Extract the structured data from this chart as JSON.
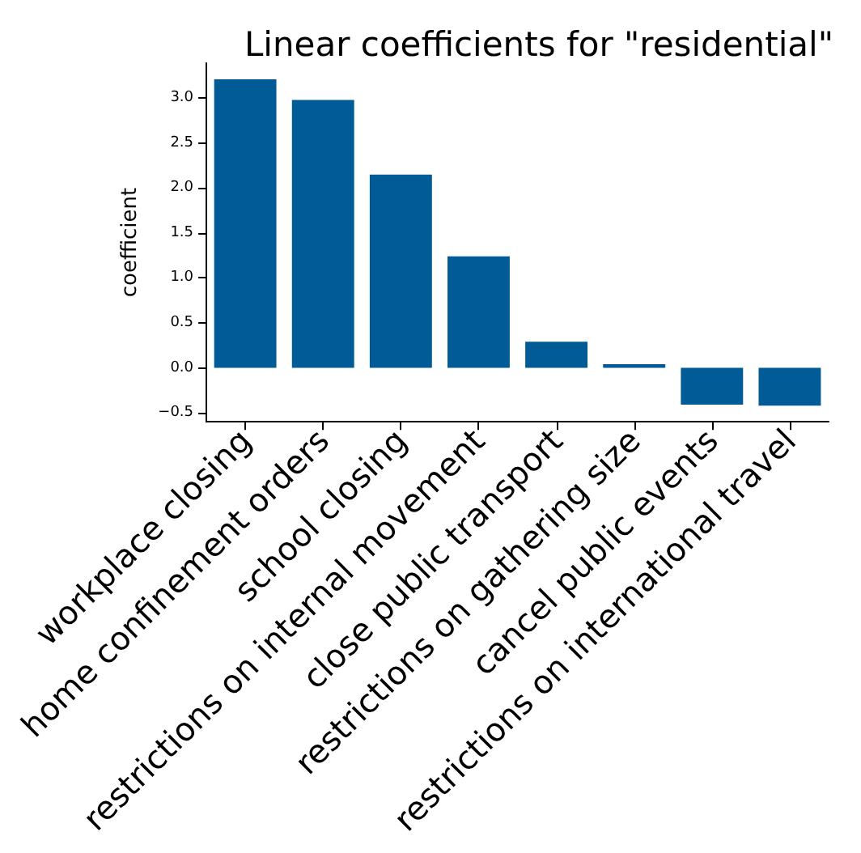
{
  "chart_data": {
    "type": "bar",
    "title": "Linear coefficients for \"residential\"",
    "ylabel": "coefficient",
    "categories": [
      "workplace closing",
      "home confinement orders",
      "school closing",
      "restrictions on internal movement",
      "close public transport",
      "restrictions on gathering size",
      "cancel public events",
      "restrictions on international travel"
    ],
    "values": [
      3.21,
      2.98,
      2.15,
      1.24,
      0.29,
      0.04,
      -0.41,
      -0.42
    ],
    "color": "#005b96",
    "ylim": [
      -0.6,
      3.39
    ],
    "yticks": [
      {
        "value": -0.5,
        "label": "−0.5"
      },
      {
        "value": 0,
        "label": "0.0"
      },
      {
        "value": 0.5,
        "label": "0.5"
      },
      {
        "value": 1,
        "label": "1.0"
      },
      {
        "value": 1.5,
        "label": "1.5"
      },
      {
        "value": 2,
        "label": "2.0"
      },
      {
        "value": 2.5,
        "label": "2.5"
      },
      {
        "value": 3,
        "label": "3.0"
      }
    ],
    "grid": false
  }
}
